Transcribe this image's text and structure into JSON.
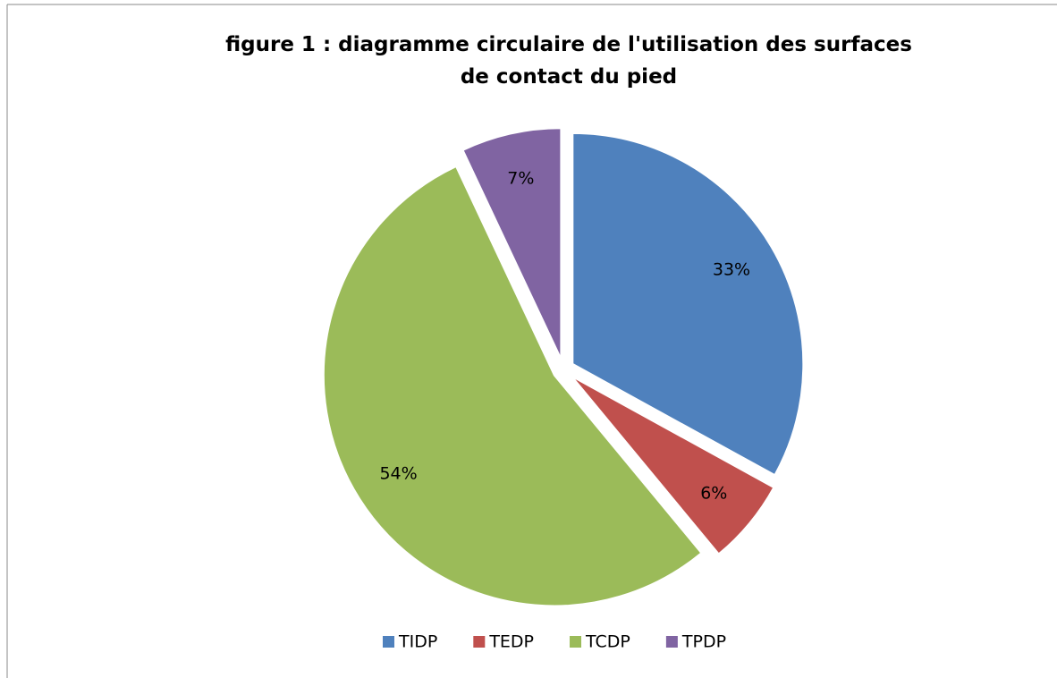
{
  "chart_data": {
    "type": "pie",
    "title": "figure 1 : diagramme circulaire de l'utilisation des surfaces de contact du pied",
    "categories": [
      "TIDP",
      "TEDP",
      "TCDP",
      "TPDP"
    ],
    "values": [
      33,
      6,
      54,
      7
    ],
    "value_labels": [
      "33%",
      "6%",
      "54%",
      "7%"
    ],
    "colors": [
      "#4f81bd",
      "#c0504d",
      "#9bbb59",
      "#8064a2"
    ],
    "legend": "bottom"
  }
}
